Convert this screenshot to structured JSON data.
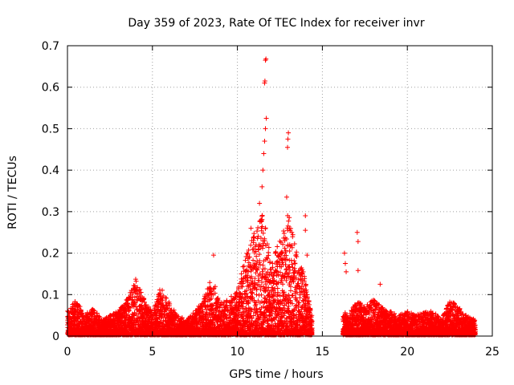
{
  "chart_data": {
    "type": "scatter",
    "title": "Day 359 of 2023, Rate Of TEC Index for receiver invr",
    "xlabel": "GPS time / hours",
    "ylabel": "ROTI / TECUs",
    "xlim": [
      0,
      25
    ],
    "ylim": [
      0,
      0.7
    ],
    "x_ticks": [
      0,
      5,
      10,
      15,
      20,
      25
    ],
    "x_tick_labels": [
      "0",
      "5",
      "10",
      "15",
      "20",
      "25"
    ],
    "y_ticks": [
      0,
      0.1,
      0.2,
      0.3,
      0.4,
      0.5,
      0.6,
      0.7
    ],
    "y_tick_labels": [
      "0",
      "0.1",
      "0.2",
      "0.3",
      "0.4",
      "0.5",
      "0.6",
      "0.7"
    ],
    "grid": true,
    "marker": "+",
    "marker_color": "#ff0000",
    "series": [
      {
        "name": "ROTI",
        "data_gaps_hours": [
          [
            14.4,
            16.2
          ]
        ],
        "envelope_x": [
          0,
          0.5,
          1.0,
          1.5,
          2.0,
          2.5,
          3.0,
          3.5,
          4.0,
          4.5,
          5.0,
          5.5,
          6.0,
          6.5,
          7.0,
          7.5,
          8.0,
          8.5,
          9.0,
          9.5,
          10.0,
          10.5,
          11.0,
          11.5,
          12.0,
          12.5,
          13.0,
          13.5,
          14.0,
          14.3,
          16.3,
          16.5,
          17.0,
          17.5,
          18.0,
          18.5,
          19.0,
          19.5,
          20.0,
          20.5,
          21.0,
          21.5,
          22.0,
          22.5,
          23.0,
          23.5,
          24.0
        ],
        "envelope_y": [
          0.06,
          0.09,
          0.05,
          0.07,
          0.04,
          0.05,
          0.06,
          0.09,
          0.14,
          0.09,
          0.06,
          0.12,
          0.08,
          0.05,
          0.04,
          0.06,
          0.09,
          0.15,
          0.08,
          0.09,
          0.11,
          0.2,
          0.25,
          0.3,
          0.18,
          0.24,
          0.3,
          0.2,
          0.14,
          0.07,
          0.06,
          0.05,
          0.09,
          0.07,
          0.09,
          0.07,
          0.06,
          0.05,
          0.06,
          0.05,
          0.06,
          0.06,
          0.04,
          0.09,
          0.07,
          0.05,
          0.04
        ],
        "outliers": [
          {
            "x": 8.6,
            "y": 0.195
          },
          {
            "x": 10.8,
            "y": 0.26
          },
          {
            "x": 11.3,
            "y": 0.32
          },
          {
            "x": 11.45,
            "y": 0.36
          },
          {
            "x": 11.5,
            "y": 0.4
          },
          {
            "x": 11.55,
            "y": 0.44
          },
          {
            "x": 11.6,
            "y": 0.47
          },
          {
            "x": 11.65,
            "y": 0.5
          },
          {
            "x": 11.7,
            "y": 0.525
          },
          {
            "x": 11.6,
            "y": 0.61
          },
          {
            "x": 11.62,
            "y": 0.615
          },
          {
            "x": 11.65,
            "y": 0.665
          },
          {
            "x": 11.68,
            "y": 0.668
          },
          {
            "x": 12.9,
            "y": 0.335
          },
          {
            "x": 12.95,
            "y": 0.455
          },
          {
            "x": 12.97,
            "y": 0.475
          },
          {
            "x": 13.0,
            "y": 0.49
          },
          {
            "x": 13.2,
            "y": 0.25
          },
          {
            "x": 14.0,
            "y": 0.29
          },
          {
            "x": 14.0,
            "y": 0.255
          },
          {
            "x": 14.1,
            "y": 0.195
          },
          {
            "x": 16.3,
            "y": 0.2
          },
          {
            "x": 16.35,
            "y": 0.175
          },
          {
            "x": 16.4,
            "y": 0.155
          },
          {
            "x": 17.05,
            "y": 0.25
          },
          {
            "x": 17.1,
            "y": 0.228
          },
          {
            "x": 17.1,
            "y": 0.158
          },
          {
            "x": 18.4,
            "y": 0.125
          }
        ]
      }
    ]
  }
}
